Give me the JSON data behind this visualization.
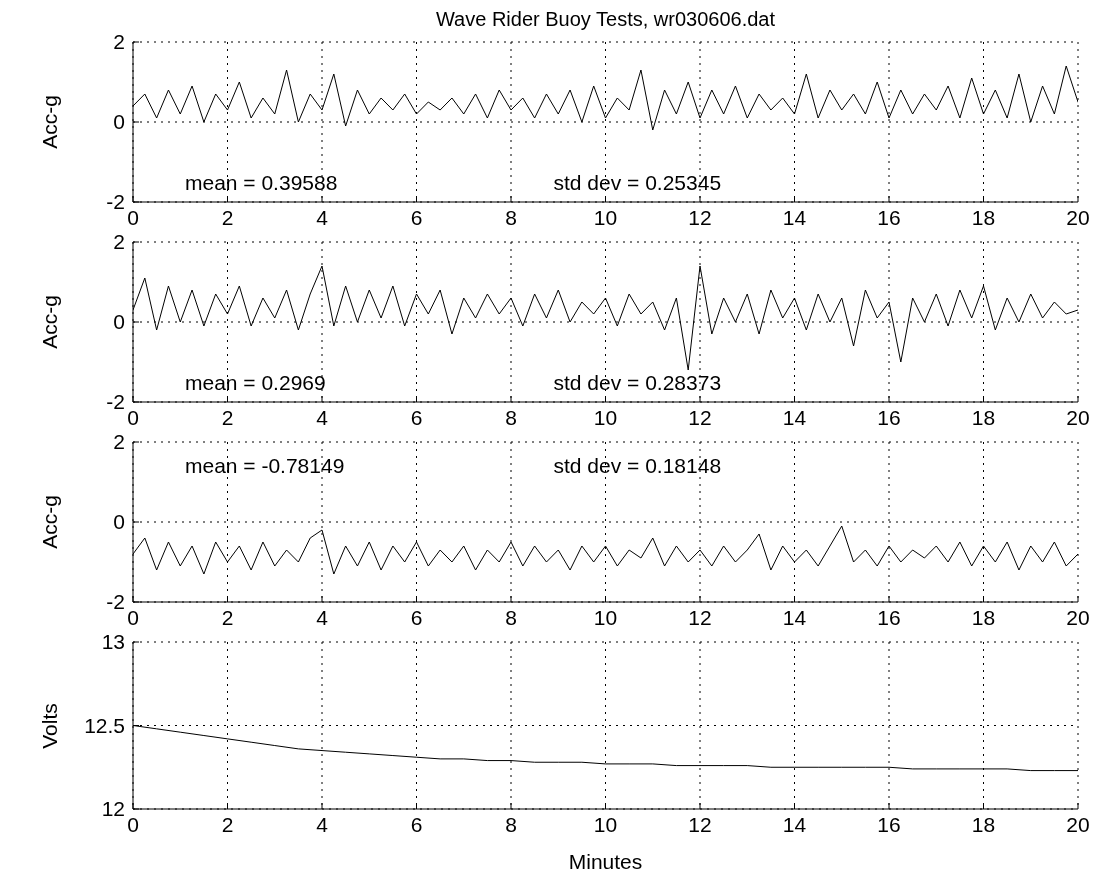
{
  "chart_data": [
    {
      "type": "line",
      "title": "Wave Rider Buoy Tests, wr030606.dat",
      "ylabel": "Acc-g",
      "annotations": [
        "mean = 0.39588",
        "std dev = 0.25345"
      ],
      "xlim": [
        0,
        20
      ],
      "xticks": [
        0,
        2,
        4,
        6,
        8,
        10,
        12,
        14,
        16,
        18,
        20
      ],
      "ylim": [
        -2,
        2
      ],
      "yticks": [
        -2,
        0,
        2
      ],
      "grid": true,
      "x": [
        0,
        0.25,
        0.5,
        0.75,
        1,
        1.25,
        1.5,
        1.75,
        2,
        2.25,
        2.5,
        2.75,
        3,
        3.25,
        3.5,
        3.75,
        4,
        4.25,
        4.5,
        4.75,
        5,
        5.25,
        5.5,
        5.75,
        6,
        6.25,
        6.5,
        6.75,
        7,
        7.25,
        7.5,
        7.75,
        8,
        8.25,
        8.5,
        8.75,
        9,
        9.25,
        9.5,
        9.75,
        10,
        10.25,
        10.5,
        10.75,
        11,
        11.25,
        11.5,
        11.75,
        12,
        12.25,
        12.5,
        12.75,
        13,
        13.25,
        13.5,
        13.75,
        14,
        14.25,
        14.5,
        14.75,
        15,
        15.25,
        15.5,
        15.75,
        16,
        16.25,
        16.5,
        16.75,
        17,
        17.25,
        17.5,
        17.75,
        18,
        18.25,
        18.5,
        18.75,
        19,
        19.25,
        19.5,
        19.75,
        20
      ],
      "series": [
        {
          "color": "#000000",
          "values": [
            0.4,
            0.7,
            0.1,
            0.8,
            0.2,
            0.9,
            0.0,
            0.7,
            0.3,
            1.0,
            0.1,
            0.6,
            0.2,
            1.3,
            0.0,
            0.7,
            0.3,
            1.2,
            -0.1,
            0.8,
            0.2,
            0.6,
            0.3,
            0.7,
            0.2,
            0.5,
            0.3,
            0.6,
            0.2,
            0.7,
            0.1,
            0.8,
            0.3,
            0.6,
            0.1,
            0.7,
            0.2,
            0.8,
            0.0,
            0.9,
            0.1,
            0.6,
            0.3,
            1.3,
            -0.2,
            0.8,
            0.2,
            1.0,
            0.1,
            0.8,
            0.2,
            0.9,
            0.1,
            0.7,
            0.3,
            0.6,
            0.2,
            1.2,
            0.1,
            0.8,
            0.3,
            0.7,
            0.2,
            1.0,
            0.1,
            0.8,
            0.2,
            0.7,
            0.3,
            0.9,
            0.1,
            1.1,
            0.2,
            0.8,
            0.1,
            1.2,
            0.0,
            0.9,
            0.2,
            1.4,
            0.5
          ]
        }
      ]
    },
    {
      "type": "line",
      "ylabel": "Acc-g",
      "annotations": [
        "mean = 0.2969",
        "std dev = 0.28373"
      ],
      "xlim": [
        0,
        20
      ],
      "xticks": [
        0,
        2,
        4,
        6,
        8,
        10,
        12,
        14,
        16,
        18,
        20
      ],
      "ylim": [
        -2,
        2
      ],
      "yticks": [
        -2,
        0,
        2
      ],
      "grid": true,
      "x": [
        0,
        0.25,
        0.5,
        0.75,
        1,
        1.25,
        1.5,
        1.75,
        2,
        2.25,
        2.5,
        2.75,
        3,
        3.25,
        3.5,
        3.75,
        4,
        4.25,
        4.5,
        4.75,
        5,
        5.25,
        5.5,
        5.75,
        6,
        6.25,
        6.5,
        6.75,
        7,
        7.25,
        7.5,
        7.75,
        8,
        8.25,
        8.5,
        8.75,
        9,
        9.25,
        9.5,
        9.75,
        10,
        10.25,
        10.5,
        10.75,
        11,
        11.25,
        11.5,
        11.75,
        12,
        12.25,
        12.5,
        12.75,
        13,
        13.25,
        13.5,
        13.75,
        14,
        14.25,
        14.5,
        14.75,
        15,
        15.25,
        15.5,
        15.75,
        16,
        16.25,
        16.5,
        16.75,
        17,
        17.25,
        17.5,
        17.75,
        18,
        18.25,
        18.5,
        18.75,
        19,
        19.25,
        19.5,
        19.75,
        20
      ],
      "series": [
        {
          "color": "#000000",
          "values": [
            0.3,
            1.1,
            -0.2,
            0.9,
            0.0,
            0.8,
            -0.1,
            0.7,
            0.2,
            0.9,
            -0.1,
            0.6,
            0.1,
            0.8,
            -0.2,
            0.7,
            1.4,
            -0.1,
            0.9,
            0.0,
            0.8,
            0.1,
            0.9,
            -0.1,
            0.7,
            0.2,
            0.8,
            -0.3,
            0.6,
            0.1,
            0.7,
            0.2,
            0.6,
            -0.1,
            0.7,
            0.1,
            0.8,
            0.0,
            0.5,
            0.2,
            0.6,
            -0.1,
            0.7,
            0.2,
            0.5,
            -0.2,
            0.6,
            -1.2,
            1.4,
            -0.3,
            0.6,
            0.0,
            0.7,
            -0.3,
            0.8,
            0.1,
            0.6,
            -0.2,
            0.7,
            0.0,
            0.6,
            -0.6,
            0.8,
            0.1,
            0.5,
            -1.0,
            0.6,
            0.0,
            0.7,
            -0.1,
            0.8,
            0.1,
            0.9,
            -0.2,
            0.6,
            0.0,
            0.7,
            0.1,
            0.5,
            0.2,
            0.3
          ]
        }
      ]
    },
    {
      "type": "line",
      "ylabel": "Acc-g",
      "annotations": [
        "mean = -0.78149",
        "std dev = 0.18148"
      ],
      "xlim": [
        0,
        20
      ],
      "xticks": [
        0,
        2,
        4,
        6,
        8,
        10,
        12,
        14,
        16,
        18,
        20
      ],
      "ylim": [
        -2,
        2
      ],
      "yticks": [
        -2,
        0,
        2
      ],
      "grid": true,
      "x": [
        0,
        0.25,
        0.5,
        0.75,
        1,
        1.25,
        1.5,
        1.75,
        2,
        2.25,
        2.5,
        2.75,
        3,
        3.25,
        3.5,
        3.75,
        4,
        4.25,
        4.5,
        4.75,
        5,
        5.25,
        5.5,
        5.75,
        6,
        6.25,
        6.5,
        6.75,
        7,
        7.25,
        7.5,
        7.75,
        8,
        8.25,
        8.5,
        8.75,
        9,
        9.25,
        9.5,
        9.75,
        10,
        10.25,
        10.5,
        10.75,
        11,
        11.25,
        11.5,
        11.75,
        12,
        12.25,
        12.5,
        12.75,
        13,
        13.25,
        13.5,
        13.75,
        14,
        14.25,
        14.5,
        14.75,
        15,
        15.25,
        15.5,
        15.75,
        16,
        16.25,
        16.5,
        16.75,
        17,
        17.25,
        17.5,
        17.75,
        18,
        18.25,
        18.5,
        18.75,
        19,
        19.25,
        19.5,
        19.75,
        20
      ],
      "series": [
        {
          "color": "#000000",
          "values": [
            -0.8,
            -0.4,
            -1.2,
            -0.5,
            -1.1,
            -0.6,
            -1.3,
            -0.5,
            -1.0,
            -0.6,
            -1.2,
            -0.5,
            -1.1,
            -0.7,
            -1.0,
            -0.4,
            -0.2,
            -1.3,
            -0.6,
            -1.1,
            -0.5,
            -1.2,
            -0.6,
            -1.0,
            -0.5,
            -1.1,
            -0.7,
            -1.0,
            -0.6,
            -1.2,
            -0.7,
            -1.0,
            -0.5,
            -1.1,
            -0.6,
            -1.0,
            -0.7,
            -1.2,
            -0.6,
            -1.0,
            -0.6,
            -1.1,
            -0.7,
            -0.9,
            -0.4,
            -1.1,
            -0.6,
            -1.0,
            -0.7,
            -1.1,
            -0.6,
            -1.0,
            -0.7,
            -0.3,
            -1.2,
            -0.6,
            -1.0,
            -0.7,
            -1.1,
            -0.6,
            -0.1,
            -1.0,
            -0.7,
            -1.1,
            -0.6,
            -1.0,
            -0.7,
            -0.9,
            -0.6,
            -1.0,
            -0.5,
            -1.1,
            -0.6,
            -1.0,
            -0.5,
            -1.2,
            -0.6,
            -1.0,
            -0.5,
            -1.1,
            -0.8
          ]
        }
      ]
    },
    {
      "type": "line",
      "ylabel": "Volts",
      "xlabel": "Minutes",
      "xlim": [
        0,
        20
      ],
      "xticks": [
        0,
        2,
        4,
        6,
        8,
        10,
        12,
        14,
        16,
        18,
        20
      ],
      "ylim": [
        12,
        13
      ],
      "yticks": [
        12,
        12.5,
        13
      ],
      "grid": true,
      "x": [
        0,
        0.5,
        1,
        1.5,
        2,
        2.5,
        3,
        3.5,
        4,
        4.5,
        5,
        5.5,
        6,
        6.5,
        7,
        7.5,
        8,
        8.5,
        9,
        9.5,
        10,
        10.5,
        11,
        11.5,
        12,
        12.5,
        13,
        13.5,
        14,
        14.5,
        15,
        15.5,
        16,
        16.5,
        17,
        17.5,
        18,
        18.5,
        19,
        19.5,
        20
      ],
      "series": [
        {
          "color": "#000000",
          "values": [
            12.5,
            12.48,
            12.46,
            12.44,
            12.42,
            12.4,
            12.38,
            12.36,
            12.35,
            12.34,
            12.33,
            12.32,
            12.31,
            12.3,
            12.3,
            12.29,
            12.29,
            12.28,
            12.28,
            12.28,
            12.27,
            12.27,
            12.27,
            12.26,
            12.26,
            12.26,
            12.26,
            12.25,
            12.25,
            12.25,
            12.25,
            12.25,
            12.25,
            12.24,
            12.24,
            12.24,
            12.24,
            12.24,
            12.23,
            12.23,
            12.23
          ]
        }
      ]
    }
  ]
}
